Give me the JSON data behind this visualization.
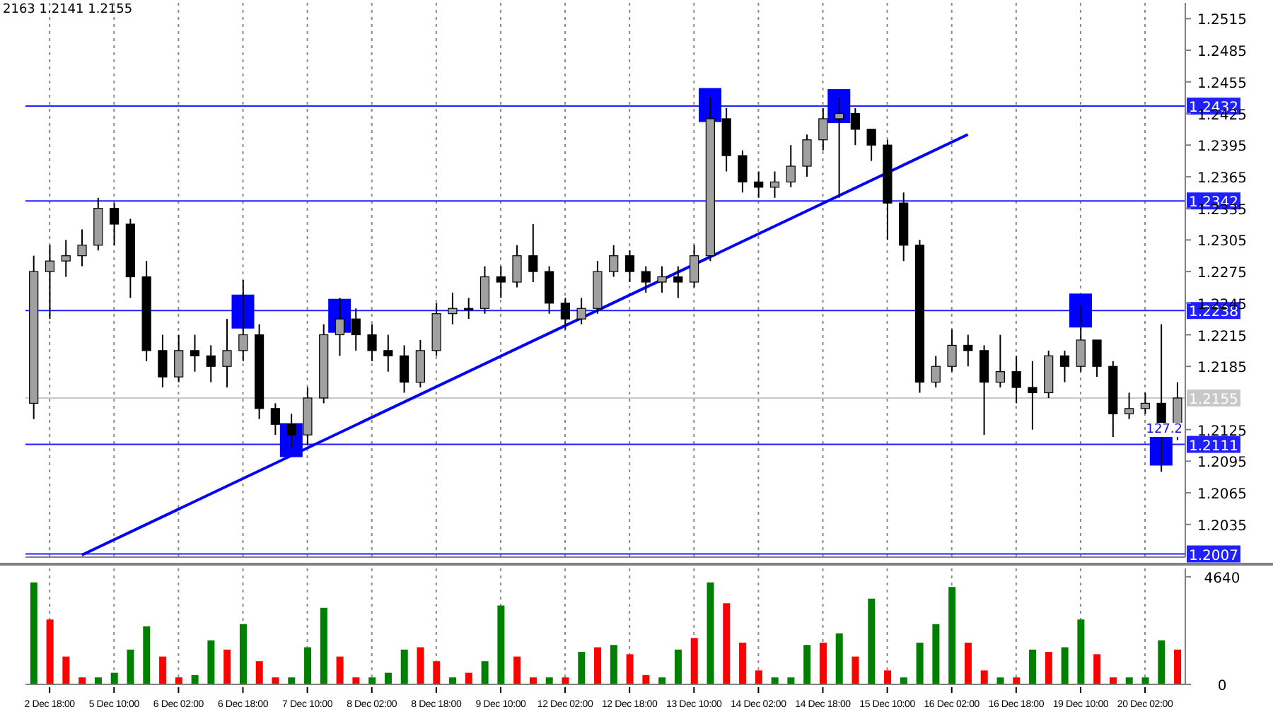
{
  "chart_data": [
    {
      "type": "candlestick",
      "annotations": [
        "2163 1.2141 1.2155",
        {
          "text": "127.2",
          "y": 1.2111
        }
      ],
      "categories": [
        null,
        null,
        null,
        null,
        null,
        null,
        null,
        null,
        null,
        null,
        null,
        null,
        null,
        null,
        null,
        null,
        null,
        null,
        null,
        null,
        null,
        null,
        null,
        null,
        null,
        null,
        null,
        null,
        null,
        null,
        null,
        null,
        null,
        null,
        null,
        null,
        null,
        null,
        null,
        null,
        null,
        null,
        null,
        null,
        null,
        null,
        null,
        null,
        null,
        null,
        null,
        null,
        null,
        null,
        null,
        null,
        null,
        null,
        null,
        null,
        null,
        null,
        null,
        null,
        null,
        null,
        null,
        null,
        null,
        null,
        null,
        null
      ],
      "ohlc": [
        [
          1.215,
          1.229,
          1.2135,
          1.2275
        ],
        [
          1.2275,
          1.23,
          1.223,
          1.2285
        ],
        [
          1.2285,
          1.2305,
          1.227,
          1.229
        ],
        [
          1.229,
          1.2315,
          1.228,
          1.23
        ],
        [
          1.23,
          1.2345,
          1.2295,
          1.2335
        ],
        [
          1.2335,
          1.234,
          1.23,
          1.232
        ],
        [
          1.232,
          1.2325,
          1.225,
          1.227
        ],
        [
          1.227,
          1.2285,
          1.219,
          1.22
        ],
        [
          1.22,
          1.2215,
          1.2165,
          1.2175
        ],
        [
          1.2175,
          1.2215,
          1.217,
          1.22
        ],
        [
          1.22,
          1.2215,
          1.218,
          1.2195
        ],
        [
          1.2195,
          1.2205,
          1.217,
          1.2185
        ],
        [
          1.2185,
          1.223,
          1.2165,
          1.22
        ],
        [
          1.22,
          1.2267,
          1.219,
          1.2215
        ],
        [
          1.2215,
          1.2225,
          1.2135,
          1.2145
        ],
        [
          1.2145,
          1.215,
          1.212,
          1.213
        ],
        [
          1.213,
          1.214,
          1.2108,
          1.212
        ],
        [
          1.212,
          1.2165,
          1.211,
          1.2155
        ],
        [
          1.2155,
          1.2225,
          1.215,
          1.2215
        ],
        [
          1.2215,
          1.225,
          1.2195,
          1.223
        ],
        [
          1.223,
          1.224,
          1.22,
          1.2215
        ],
        [
          1.2215,
          1.2225,
          1.219,
          1.22
        ],
        [
          1.22,
          1.2215,
          1.218,
          1.2195
        ],
        [
          1.2195,
          1.2205,
          1.216,
          1.217
        ],
        [
          1.217,
          1.221,
          1.2165,
          1.22
        ],
        [
          1.22,
          1.2245,
          1.2195,
          1.2235
        ],
        [
          1.2235,
          1.2255,
          1.2225,
          1.224
        ],
        [
          1.224,
          1.225,
          1.223,
          1.224
        ],
        [
          1.224,
          1.228,
          1.2235,
          1.227
        ],
        [
          1.227,
          1.228,
          1.225,
          1.2265
        ],
        [
          1.2265,
          1.23,
          1.226,
          1.229
        ],
        [
          1.229,
          1.232,
          1.2265,
          1.2275
        ],
        [
          1.2275,
          1.228,
          1.2235,
          1.2245
        ],
        [
          1.2245,
          1.225,
          1.222,
          1.223
        ],
        [
          1.223,
          1.225,
          1.2225,
          1.224
        ],
        [
          1.224,
          1.2285,
          1.2235,
          1.2275
        ],
        [
          1.2275,
          1.23,
          1.227,
          1.229
        ],
        [
          1.229,
          1.2295,
          1.2265,
          1.2275
        ],
        [
          1.2275,
          1.228,
          1.2255,
          1.2265
        ],
        [
          1.2265,
          1.228,
          1.2255,
          1.227
        ],
        [
          1.227,
          1.228,
          1.225,
          1.2265
        ],
        [
          1.2265,
          1.23,
          1.226,
          1.229
        ],
        [
          1.229,
          1.244,
          1.2285,
          1.242
        ],
        [
          1.242,
          1.243,
          1.237,
          1.2385
        ],
        [
          1.2385,
          1.239,
          1.235,
          1.236
        ],
        [
          1.236,
          1.237,
          1.2345,
          1.2355
        ],
        [
          1.2355,
          1.237,
          1.2345,
          1.236
        ],
        [
          1.236,
          1.2395,
          1.2355,
          1.2375
        ],
        [
          1.2375,
          1.2405,
          1.2365,
          1.24
        ],
        [
          1.24,
          1.243,
          1.239,
          1.242
        ],
        [
          1.242,
          1.244,
          1.2345,
          1.2425
        ],
        [
          1.2425,
          1.243,
          1.2395,
          1.241
        ],
        [
          1.241,
          1.241,
          1.238,
          1.2395
        ],
        [
          1.2395,
          1.24,
          1.2305,
          1.234
        ],
        [
          1.234,
          1.235,
          1.2285,
          1.23
        ],
        [
          1.23,
          1.2305,
          1.216,
          1.217
        ],
        [
          1.217,
          1.2195,
          1.2165,
          1.2185
        ],
        [
          1.2185,
          1.222,
          1.218,
          1.2205
        ],
        [
          1.2205,
          1.2215,
          1.2185,
          1.22
        ],
        [
          1.22,
          1.2205,
          1.212,
          1.217
        ],
        [
          1.217,
          1.2215,
          1.2165,
          1.218
        ],
        [
          1.218,
          1.2195,
          1.215,
          1.2165
        ],
        [
          1.2165,
          1.219,
          1.2125,
          1.216
        ],
        [
          1.216,
          1.22,
          1.2155,
          1.2195
        ],
        [
          1.2195,
          1.22,
          1.217,
          1.2185
        ],
        [
          1.2185,
          1.2243,
          1.218,
          1.221
        ],
        [
          1.221,
          1.221,
          1.2175,
          1.2185
        ],
        [
          1.2185,
          1.219,
          1.2118,
          1.214
        ],
        [
          1.214,
          1.216,
          1.2135,
          1.2145
        ],
        [
          1.2145,
          1.216,
          1.214,
          1.215
        ],
        [
          1.215,
          1.2225,
          1.2085,
          1.212
        ],
        [
          1.212,
          1.217,
          1.2115,
          1.2155
        ]
      ],
      "colors": [
        "#a0a0a0",
        "#a0a0a0",
        "#a0a0a0",
        "#a0a0a0",
        "#a0a0a0",
        "#000000",
        "#000000",
        "#000000",
        "#000000",
        "#a0a0a0",
        "#000000",
        "#000000",
        "#a0a0a0",
        "#a0a0a0",
        "#000000",
        "#000000",
        "#000000",
        "#a0a0a0",
        "#a0a0a0",
        "#a0a0a0",
        "#000000",
        "#000000",
        "#000000",
        "#000000",
        "#a0a0a0",
        "#a0a0a0",
        "#a0a0a0",
        "#000000",
        "#a0a0a0",
        "#000000",
        "#a0a0a0",
        "#000000",
        "#000000",
        "#000000",
        "#a0a0a0",
        "#a0a0a0",
        "#a0a0a0",
        "#000000",
        "#000000",
        "#a0a0a0",
        "#000000",
        "#a0a0a0",
        "#a0a0a0",
        "#000000",
        "#000000",
        "#000000",
        "#a0a0a0",
        "#a0a0a0",
        "#a0a0a0",
        "#a0a0a0",
        "#a0a0a0",
        "#000000",
        "#000000",
        "#000000",
        "#000000",
        "#000000",
        "#a0a0a0",
        "#a0a0a0",
        "#000000",
        "#000000",
        "#a0a0a0",
        "#000000",
        "#000000",
        "#a0a0a0",
        "#000000",
        "#a0a0a0",
        "#000000",
        "#000000",
        "#a0a0a0",
        "#a0a0a0",
        "#000000",
        "#a0a0a0"
      ],
      "series": [
        {
          "type": "line",
          "color": "#0000ff",
          "values": [
            null,
            null,
            null,
            1.2006,
            null,
            null,
            null,
            null,
            null,
            null,
            null,
            null,
            null,
            null,
            null,
            null,
            null,
            null,
            null,
            null,
            null,
            null,
            null,
            null,
            null,
            null,
            null,
            null,
            null,
            null,
            null,
            null,
            null,
            null,
            null,
            null,
            null,
            null,
            null,
            null,
            null,
            null,
            null,
            null,
            null,
            null,
            null,
            null,
            null,
            null,
            null,
            null,
            null,
            null,
            null,
            null,
            null,
            null,
            1.2405,
            null,
            null,
            null,
            null,
            null,
            null,
            null,
            null,
            null,
            null,
            null,
            null,
            null
          ]
        },
        {
          "type": "scatter",
          "color": "#0000ff",
          "marker": "square",
          "values": [
            null,
            null,
            null,
            null,
            null,
            null,
            null,
            null,
            null,
            null,
            null,
            null,
            null,
            1.2237,
            null,
            null,
            1.2115,
            null,
            null,
            1.2233,
            null,
            null,
            null,
            null,
            null,
            null,
            null,
            null,
            null,
            null,
            null,
            null,
            null,
            null,
            null,
            null,
            null,
            null,
            null,
            null,
            null,
            null,
            1.2433,
            null,
            null,
            null,
            null,
            null,
            null,
            null,
            1.2432,
            null,
            null,
            null,
            null,
            null,
            null,
            null,
            null,
            null,
            null,
            null,
            null,
            null,
            null,
            1.2238,
            null,
            null,
            null,
            null,
            1.2107,
            null
          ]
        }
      ],
      "ylim": [
        1.2004,
        1.253
      ],
      "yticks": [
        1.2035,
        1.2065,
        1.2095,
        1.2125,
        1.2185,
        1.2215,
        1.2245,
        1.2275,
        1.2305,
        1.2335,
        1.2365,
        1.2395,
        1.2425,
        1.2455,
        1.2485,
        1.2515
      ],
      "ref_lines": [
        {
          "axis": "y",
          "value": 1.2432,
          "label": "1.2432",
          "color": "#2020ff"
        },
        {
          "axis": "y",
          "value": 1.2342,
          "label": "1.2342",
          "color": "#2020ff"
        },
        {
          "axis": "y",
          "value": 1.2238,
          "label": "1.2238",
          "color": "#2020ff"
        },
        {
          "axis": "y",
          "value": 1.2155,
          "label": "1.2155",
          "color": "#c8c8c8"
        },
        {
          "axis": "y",
          "value": 1.2111,
          "label": "1.2111",
          "color": "#2020ff"
        },
        {
          "axis": "y",
          "value": 1.2007,
          "label": "1.2007",
          "color": "#2020ff"
        }
      ],
      "grid": "x",
      "tick_labels": "y"
    },
    {
      "type": "bar",
      "categories": [
        null,
        "2 Dec 18:00",
        null,
        null,
        null,
        "5 Dec 10:00",
        null,
        null,
        null,
        "6 Dec 02:00",
        null,
        null,
        null,
        "6 Dec 18:00",
        null,
        null,
        null,
        "7 Dec 10:00",
        null,
        null,
        null,
        "8 Dec 02:00",
        null,
        null,
        null,
        "8 Dec 18:00",
        null,
        null,
        null,
        "9 Dec 10:00",
        null,
        null,
        null,
        "12 Dec 02:00",
        null,
        null,
        null,
        "12 Dec 18:00",
        null,
        null,
        null,
        "13 Dec 10:00",
        null,
        null,
        null,
        "14 Dec 02:00",
        null,
        null,
        null,
        "14 Dec 18:00",
        null,
        null,
        null,
        "15 Dec 10:00",
        null,
        null,
        null,
        "16 Dec 02:00",
        null,
        null,
        null,
        "16 Dec 18:00",
        null,
        null,
        null,
        "19 Dec 10:00",
        null,
        null,
        null,
        "20 Dec 02:00",
        null,
        null
      ],
      "values": [
        4400,
        2800,
        1200,
        300,
        300,
        500,
        1500,
        2500,
        1200,
        300,
        400,
        1900,
        1500,
        2600,
        1000,
        300,
        300,
        1600,
        3300,
        1200,
        300,
        300,
        500,
        1500,
        1600,
        1000,
        300,
        500,
        1000,
        3400,
        1200,
        300,
        300,
        300,
        1400,
        1600,
        1700,
        1300,
        400,
        300,
        1500,
        2000,
        4400,
        3500,
        1800,
        600,
        300,
        300,
        1700,
        1800,
        2200,
        1200,
        3700,
        600,
        300,
        1800,
        2600,
        4200,
        1800,
        600,
        300,
        300,
        1500,
        1400,
        1600,
        2800,
        1300,
        300,
        300,
        300,
        1900,
        1500
      ],
      "colors": [
        "#008000",
        "#ff0000",
        "#ff0000",
        "#ff0000",
        "#008000",
        "#008000",
        "#008000",
        "#008000",
        "#ff0000",
        "#ff0000",
        "#008000",
        "#008000",
        "#ff0000",
        "#008000",
        "#ff0000",
        "#ff0000",
        "#008000",
        "#008000",
        "#008000",
        "#ff0000",
        "#ff0000",
        "#008000",
        "#008000",
        "#008000",
        "#ff0000",
        "#ff0000",
        "#008000",
        "#ff0000",
        "#008000",
        "#008000",
        "#ff0000",
        "#ff0000",
        "#008000",
        "#ff0000",
        "#008000",
        "#ff0000",
        "#008000",
        "#ff0000",
        "#ff0000",
        "#008000",
        "#008000",
        "#ff0000",
        "#008000",
        "#ff0000",
        "#ff0000",
        "#ff0000",
        "#008000",
        "#008000",
        "#008000",
        "#ff0000",
        "#008000",
        "#ff0000",
        "#008000",
        "#ff0000",
        "#008000",
        "#008000",
        "#008000",
        "#008000",
        "#ff0000",
        "#ff0000",
        "#008000",
        "#ff0000",
        "#008000",
        "#ff0000",
        "#008000",
        "#008000",
        "#ff0000",
        "#ff0000",
        "#008000",
        "#008000",
        "#008000",
        "#ff0000"
      ],
      "ylim": [
        0,
        5000
      ],
      "yticks": [
        0,
        4640
      ],
      "grid": "x"
    }
  ]
}
